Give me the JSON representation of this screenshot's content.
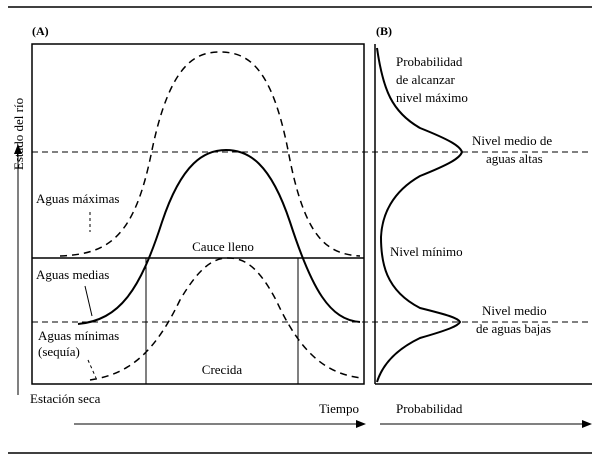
{
  "panel_a": {
    "tag": "(A)",
    "y_axis_label": "Estado del río",
    "x_axis_label": "Tiempo",
    "season_label": "Estación seca",
    "labels": {
      "aguas_maximas": "Aguas máximas",
      "cauce_lleno": "Cauce lleno",
      "aguas_medias": "Aguas medias",
      "aguas_minimas": "Aguas mínimas",
      "sequia": "(sequía)",
      "crecida": "Crecida"
    }
  },
  "panel_b": {
    "tag": "(B)",
    "x_axis_label": "Probabilidad",
    "labels": {
      "prob_line1": "Probabilidad",
      "prob_line2": "de alcanzar",
      "prob_line3": "nivel máximo",
      "alto_line1": "Nivel medio de",
      "alto_line2": "aguas altas",
      "minimo": "Nivel mínimo",
      "bajo_line1": "Nivel medio",
      "bajo_line2": "de aguas bajas"
    }
  }
}
